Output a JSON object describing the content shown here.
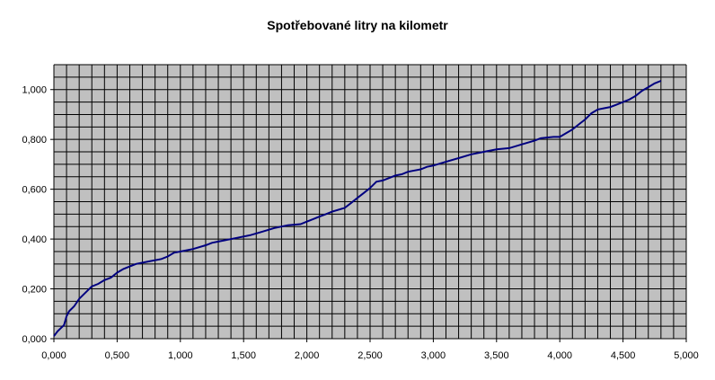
{
  "chart_data": {
    "type": "line",
    "title": "Spotřebované litry na kilometr",
    "xlabel": "",
    "ylabel": "",
    "xlim": [
      0,
      5
    ],
    "ylim": [
      0,
      1.1
    ],
    "grid": true,
    "legend": "none",
    "x_ticks": [
      "0,000",
      "0,500",
      "1,000",
      "1,500",
      "2,000",
      "2,500",
      "3,000",
      "3,500",
      "4,000",
      "4,500",
      "5,000"
    ],
    "y_ticks": [
      "0,000",
      "0,200",
      "0,400",
      "0,600",
      "0,800",
      "1,000"
    ],
    "colors": {
      "plot_background": "#c0c0c0",
      "gridline": "#000000",
      "series": "#000080"
    },
    "series": [
      {
        "x": [
          0.0,
          0.03,
          0.08,
          0.1,
          0.12,
          0.16,
          0.2,
          0.26,
          0.3,
          0.35,
          0.4,
          0.45,
          0.5,
          0.55,
          0.6,
          0.65,
          0.75,
          0.85,
          0.9,
          0.95,
          1.0,
          1.05,
          1.1,
          1.2,
          1.25,
          1.3,
          1.35,
          1.45,
          1.55,
          1.65,
          1.75,
          1.8,
          1.85,
          1.95,
          2.0,
          2.05,
          2.1,
          2.15,
          2.2,
          2.3,
          2.35,
          2.4,
          2.45,
          2.5,
          2.55,
          2.6,
          2.65,
          2.7,
          2.75,
          2.8,
          2.85,
          2.9,
          2.95,
          3.0,
          3.1,
          3.2,
          3.3,
          3.4,
          3.5,
          3.6,
          3.7,
          3.8,
          3.85,
          3.95,
          4.0,
          4.05,
          4.1,
          4.15,
          4.2,
          4.25,
          4.3,
          4.35,
          4.4,
          4.45,
          4.5,
          4.55,
          4.6,
          4.65,
          4.7,
          4.75,
          4.8
        ],
        "y": [
          0.01,
          0.03,
          0.055,
          0.09,
          0.11,
          0.13,
          0.16,
          0.19,
          0.21,
          0.22,
          0.235,
          0.245,
          0.265,
          0.28,
          0.29,
          0.3,
          0.31,
          0.32,
          0.33,
          0.345,
          0.35,
          0.355,
          0.36,
          0.375,
          0.385,
          0.39,
          0.395,
          0.405,
          0.415,
          0.43,
          0.445,
          0.45,
          0.455,
          0.46,
          0.47,
          0.48,
          0.49,
          0.5,
          0.51,
          0.525,
          0.545,
          0.565,
          0.585,
          0.605,
          0.63,
          0.635,
          0.645,
          0.655,
          0.66,
          0.67,
          0.675,
          0.68,
          0.69,
          0.695,
          0.71,
          0.725,
          0.74,
          0.75,
          0.76,
          0.765,
          0.78,
          0.795,
          0.805,
          0.81,
          0.81,
          0.825,
          0.84,
          0.86,
          0.88,
          0.905,
          0.92,
          0.925,
          0.93,
          0.94,
          0.95,
          0.96,
          0.975,
          0.995,
          1.01,
          1.025,
          1.035
        ]
      }
    ]
  }
}
